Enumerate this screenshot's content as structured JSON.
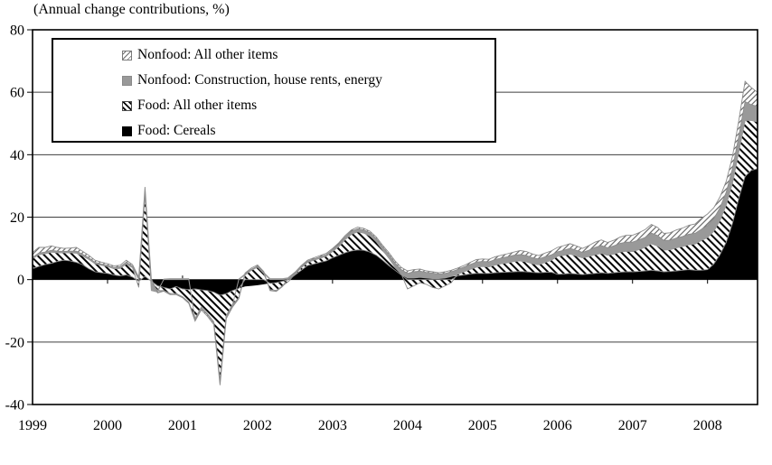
{
  "title": "(Annual change contributions, %)",
  "colors": {
    "background": "#ffffff",
    "frame": "#000000",
    "grid": "#3f3f3f",
    "axis_text": "#000000",
    "cereals_fill": "#000000",
    "gray_fill": "#999999",
    "hatch_dark_line": "#000000",
    "hatch_light_line": "#4d4d4d",
    "band_stroke": "#8c8c8c"
  },
  "legend": {
    "items": [
      {
        "label": "Nonfood: All other items",
        "swatch": "hatch-light"
      },
      {
        "label": "Nonfood: Construction, house rents, energy",
        "swatch": "solid-gray"
      },
      {
        "label": "Food: All other items",
        "swatch": "hatch-dark"
      },
      {
        "label": "Food: Cereals",
        "swatch": "solid-black"
      }
    ]
  },
  "chart_data": {
    "type": "area",
    "stacked": true,
    "grid": "horizontal",
    "legend_position": "top-left-inside",
    "x_start": "1999-01",
    "x_end": "2008-09",
    "points_per_year": 12,
    "x_tick_labels": [
      "1999",
      "2000",
      "2001",
      "2002",
      "2003",
      "2004",
      "2005",
      "2006",
      "2007",
      "2008"
    ],
    "ylim": [
      -40,
      80
    ],
    "y_ticks": [
      80,
      60,
      40,
      20,
      0,
      -20,
      -40
    ],
    "series": [
      {
        "name": "Food: Cereals",
        "style": "solid-black",
        "values": [
          3.5,
          4.2,
          4.8,
          5.2,
          5.8,
          6.2,
          6.0,
          5.5,
          4.8,
          3.5,
          2.5,
          2.2,
          2.0,
          1.5,
          1.2,
          1.5,
          0.8,
          -0.5,
          1.0,
          -0.5,
          -2.0,
          -2.5,
          -3.0,
          -2.2,
          -3.0,
          -3.2,
          -3.0,
          -3.3,
          -3.5,
          -4.0,
          -5.0,
          -4.5,
          -3.5,
          -2.8,
          -2.2,
          -2.0,
          -1.8,
          -1.5,
          -1.2,
          -1.0,
          -0.5,
          0.3,
          1.5,
          3.0,
          4.5,
          5.0,
          5.5,
          6.0,
          7.0,
          7.8,
          8.6,
          9.2,
          9.5,
          9.4,
          8.8,
          7.8,
          6.2,
          4.5,
          3.0,
          1.5,
          0.5,
          0.5,
          0.7,
          0.5,
          0.3,
          0.3,
          0.5,
          1.0,
          1.2,
          1.5,
          1.8,
          2.0,
          2.0,
          2.0,
          2.2,
          2.3,
          2.4,
          2.5,
          2.6,
          2.5,
          2.3,
          2.2,
          2.3,
          2.4,
          1.7,
          1.8,
          2.0,
          1.8,
          1.6,
          1.8,
          2.0,
          2.2,
          2.0,
          2.2,
          2.4,
          2.5,
          2.5,
          2.6,
          2.8,
          3.0,
          2.8,
          2.5,
          2.6,
          2.8,
          3.0,
          3.2,
          3.0,
          3.0,
          3.2,
          5.0,
          8.0,
          12.0,
          18.0,
          26.0,
          33.0,
          35.0,
          35.5
        ]
      },
      {
        "name": "Food: All other items",
        "style": "hatch-dark",
        "values": [
          3.2,
          3.8,
          3.5,
          3.6,
          2.8,
          2.4,
          2.6,
          3.0,
          2.8,
          3.0,
          2.6,
          2.4,
          2.2,
          2.0,
          2.4,
          3.5,
          3.0,
          -2.0,
          26.5,
          -0.5,
          -1.5,
          -1.0,
          -1.5,
          -2.3,
          -2.5,
          -4.0,
          -9.5,
          -5.5,
          -7.5,
          -9.5,
          -27.5,
          -7.0,
          -4.5,
          -3.0,
          1.5,
          3.0,
          4.0,
          2.0,
          -2.0,
          -2.5,
          -1.5,
          -0.5,
          0.3,
          0.8,
          1.0,
          1.2,
          1.3,
          1.5,
          2.0,
          2.8,
          4.2,
          5.3,
          5.8,
          5.5,
          5.2,
          4.3,
          3.3,
          2.4,
          1.0,
          0.3,
          -3.0,
          -2.0,
          -1.0,
          -1.5,
          -2.5,
          -3.0,
          -2.0,
          -1.0,
          0.5,
          1.0,
          1.5,
          2.0,
          2.2,
          2.1,
          2.5,
          2.8,
          3.0,
          3.3,
          3.4,
          3.2,
          2.8,
          2.6,
          3.2,
          3.8,
          5.8,
          6.0,
          6.2,
          5.8,
          5.4,
          5.6,
          6.0,
          6.2,
          5.8,
          6.0,
          6.4,
          6.6,
          6.5,
          7.0,
          7.5,
          8.5,
          8.0,
          7.0,
          7.0,
          7.4,
          7.6,
          8.0,
          8.4,
          9.5,
          10.3,
          10.5,
          11.0,
          12.0,
          13.0,
          15.0,
          18.0,
          16.0,
          15.0
        ]
      },
      {
        "name": "Nonfood: Construction, house rents, energy",
        "style": "solid-gray",
        "values": [
          0.4,
          0.5,
          0.5,
          0.6,
          0.5,
          0.4,
          0.5,
          0.6,
          0.5,
          0.5,
          0.4,
          0.4,
          0.4,
          0.4,
          0.5,
          0.6,
          0.5,
          0.4,
          0.7,
          -2.5,
          -0.5,
          0.2,
          0.3,
          0.3,
          0.3,
          0.3,
          -0.3,
          -0.4,
          -0.3,
          -0.4,
          -0.5,
          -0.4,
          -0.3,
          0.2,
          0.3,
          0.3,
          0.3,
          0.3,
          0.3,
          0.3,
          0.3,
          0.3,
          0.3,
          0.4,
          0.4,
          0.4,
          0.5,
          0.5,
          0.6,
          0.7,
          0.8,
          0.9,
          1.0,
          1.0,
          1.0,
          1.0,
          1.0,
          1.2,
          1.3,
          1.4,
          1.5,
          2.0,
          2.0,
          1.8,
          1.8,
          1.5,
          1.5,
          1.5,
          1.5,
          1.5,
          1.5,
          1.6,
          1.6,
          1.6,
          1.7,
          1.8,
          1.9,
          2.0,
          2.0,
          2.0,
          1.9,
          1.8,
          1.8,
          1.7,
          1.4,
          1.6,
          1.8,
          1.8,
          1.7,
          2.0,
          2.3,
          2.5,
          2.4,
          2.6,
          2.8,
          2.9,
          3.0,
          3.1,
          3.2,
          3.4,
          3.3,
          3.0,
          3.0,
          3.1,
          3.2,
          3.3,
          3.4,
          3.6,
          3.8,
          4.0,
          4.0,
          4.0,
          4.5,
          5.0,
          6.0,
          5.0,
          5.0
        ]
      },
      {
        "name": "Nonfood: All other items",
        "style": "hatch-light",
        "values": [
          1.6,
          1.8,
          1.5,
          1.4,
          1.2,
          1.0,
          1.0,
          1.2,
          1.0,
          0.8,
          0.7,
          0.6,
          0.5,
          0.5,
          0.5,
          0.6,
          0.5,
          0.4,
          1.5,
          0.3,
          -0.3,
          -0.2,
          -0.3,
          -0.3,
          -0.3,
          -0.4,
          -0.5,
          -0.5,
          -0.5,
          -0.5,
          -0.8,
          -0.6,
          -0.5,
          -0.3,
          0.3,
          0.4,
          0.4,
          0.3,
          -0.3,
          -0.3,
          -0.2,
          0.2,
          0.3,
          0.3,
          0.3,
          0.4,
          0.4,
          0.4,
          0.4,
          0.5,
          0.5,
          0.5,
          0.5,
          0.5,
          0.5,
          0.5,
          0.5,
          0.6,
          0.7,
          0.7,
          0.8,
          0.7,
          0.7,
          0.5,
          0.4,
          0.4,
          0.5,
          0.5,
          0.5,
          0.5,
          0.7,
          0.8,
          0.8,
          0.8,
          0.9,
          0.9,
          1.0,
          1.0,
          1.3,
          1.3,
          1.2,
          1.1,
          1.2,
          1.3,
          1.4,
          1.5,
          1.5,
          1.4,
          1.3,
          1.5,
          1.7,
          1.8,
          1.7,
          1.8,
          2.0,
          2.2,
          2.2,
          2.3,
          2.5,
          2.8,
          2.6,
          2.3,
          2.4,
          2.6,
          2.7,
          2.9,
          3.0,
          3.5,
          3.7,
          3.5,
          3.5,
          3.5,
          4.0,
          5.0,
          6.5,
          5.5,
          4.5
        ]
      }
    ]
  }
}
